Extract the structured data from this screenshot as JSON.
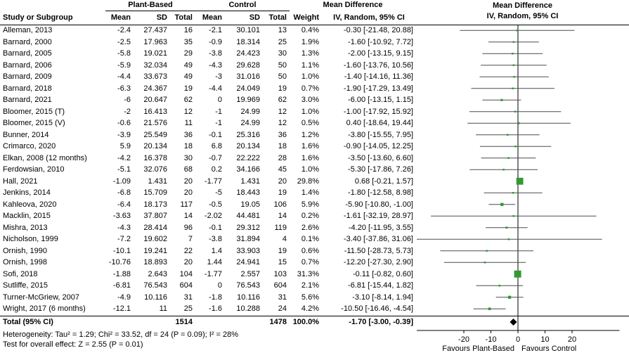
{
  "header": {
    "group1": "Plant-Based",
    "group2": "Control",
    "md_title": "Mean Difference",
    "col_study": "Study or Subgroup",
    "col_mean": "Mean",
    "col_sd": "SD",
    "col_total": "Total",
    "col_weight": "Weight",
    "col_ci": "IV, Random, 95% CI"
  },
  "footer": {
    "heterogeneity": "Heterogeneity: Tau² = 1.29; Chi² = 33.52, df = 24 (P = 0.09); I² = 28%",
    "overall_effect": "Test for overall effect: Z = 2.55 (P = 0.01)"
  },
  "colors": {
    "square": "#339933",
    "ci_line": "#4d4d4d",
    "diamond": "#000000",
    "axis": "#000000",
    "text": "#000000"
  },
  "chart_data": {
    "type": "forest",
    "title": "Mean Difference IV, Random, 95% CI",
    "effect_measure": "Mean Difference",
    "model": "IV, Random, 95% CI",
    "axis": {
      "ticks": [
        -20,
        -10,
        0,
        10,
        20
      ],
      "favours_left": "Favours Plant-Based",
      "favours_right": "Favours Control"
    },
    "studies": [
      {
        "study": "Alleman, 2013",
        "pb_mean": "-2.4",
        "pb_sd": "27.437",
        "pb_total": "16",
        "ctrl_mean": "-2.1",
        "ctrl_sd": "30.101",
        "ctrl_total": "13",
        "weight": "0.4%",
        "md": -0.3,
        "ci_low": -21.48,
        "ci_high": 20.88,
        "ci_text": "-0.30 [-21.48, 20.88]"
      },
      {
        "study": "Barnard, 2000",
        "pb_mean": "-2.5",
        "pb_sd": "17.963",
        "pb_total": "35",
        "ctrl_mean": "-0.9",
        "ctrl_sd": "18.314",
        "ctrl_total": "25",
        "weight": "1.9%",
        "md": -1.6,
        "ci_low": -10.92,
        "ci_high": 7.72,
        "ci_text": "-1.60 [-10.92, 7.72]"
      },
      {
        "study": "Barnard, 2005",
        "pb_mean": "-5.8",
        "pb_sd": "19.021",
        "pb_total": "29",
        "ctrl_mean": "-3.8",
        "ctrl_sd": "24.423",
        "ctrl_total": "30",
        "weight": "1.3%",
        "md": -2.0,
        "ci_low": -13.15,
        "ci_high": 9.15,
        "ci_text": "-2.00 [-13.15, 9.15]"
      },
      {
        "study": "Barnard, 2006",
        "pb_mean": "-5.9",
        "pb_sd": "32.034",
        "pb_total": "49",
        "ctrl_mean": "-4.3",
        "ctrl_sd": "29.628",
        "ctrl_total": "50",
        "weight": "1.1%",
        "md": -1.6,
        "ci_low": -13.76,
        "ci_high": 10.56,
        "ci_text": "-1.60 [-13.76, 10.56]"
      },
      {
        "study": "Barnard, 2009",
        "pb_mean": "-4.4",
        "pb_sd": "33.673",
        "pb_total": "49",
        "ctrl_mean": "-3",
        "ctrl_sd": "31.016",
        "ctrl_total": "50",
        "weight": "1.0%",
        "md": -1.4,
        "ci_low": -14.16,
        "ci_high": 11.36,
        "ci_text": "-1.40 [-14.16, 11.36]"
      },
      {
        "study": "Barnard, 2018",
        "pb_mean": "-6.3",
        "pb_sd": "24.367",
        "pb_total": "19",
        "ctrl_mean": "-4.4",
        "ctrl_sd": "24.049",
        "ctrl_total": "19",
        "weight": "0.7%",
        "md": -1.9,
        "ci_low": -17.29,
        "ci_high": 13.49,
        "ci_text": "-1.90 [-17.29, 13.49]"
      },
      {
        "study": "Barnard, 2021",
        "pb_mean": "-6",
        "pb_sd": "20.647",
        "pb_total": "62",
        "ctrl_mean": "0",
        "ctrl_sd": "19.969",
        "ctrl_total": "62",
        "weight": "3.0%",
        "md": -6.0,
        "ci_low": -13.15,
        "ci_high": 1.15,
        "ci_text": "-6.00 [-13.15, 1.15]"
      },
      {
        "study": "Bloomer, 2015 (T)",
        "pb_mean": "-2",
        "pb_sd": "16.413",
        "pb_total": "12",
        "ctrl_mean": "-1",
        "ctrl_sd": "24.99",
        "ctrl_total": "12",
        "weight": "1.0%",
        "md": -1.0,
        "ci_low": -17.92,
        "ci_high": 15.92,
        "ci_text": "-1.00 [-17.92, 15.92]"
      },
      {
        "study": "Bloomer, 2015 (V)",
        "pb_mean": "-0.6",
        "pb_sd": "21.576",
        "pb_total": "11",
        "ctrl_mean": "-1",
        "ctrl_sd": "24.99",
        "ctrl_total": "12",
        "weight": "0.5%",
        "md": 0.4,
        "ci_low": -18.64,
        "ci_high": 19.44,
        "ci_text": "0.40 [-18.64, 19.44]"
      },
      {
        "study": "Bunner, 2014",
        "pb_mean": "-3.9",
        "pb_sd": "25.549",
        "pb_total": "36",
        "ctrl_mean": "-0.1",
        "ctrl_sd": "25.316",
        "ctrl_total": "36",
        "weight": "1.2%",
        "md": -3.8,
        "ci_low": -15.55,
        "ci_high": 7.95,
        "ci_text": "-3.80 [-15.55, 7.95]"
      },
      {
        "study": "Crimarco, 2020",
        "pb_mean": "5.9",
        "pb_sd": "20.134",
        "pb_total": "18",
        "ctrl_mean": "6.8",
        "ctrl_sd": "20.134",
        "ctrl_total": "18",
        "weight": "1.6%",
        "md": -0.9,
        "ci_low": -14.05,
        "ci_high": 12.25,
        "ci_text": "-0.90 [-14.05, 12.25]"
      },
      {
        "study": "Elkan, 2008 (12 months)",
        "pb_mean": "-4.2",
        "pb_sd": "16.378",
        "pb_total": "30",
        "ctrl_mean": "-0.7",
        "ctrl_sd": "22.222",
        "ctrl_total": "28",
        "weight": "1.6%",
        "md": -3.5,
        "ci_low": -13.6,
        "ci_high": 6.6,
        "ci_text": "-3.50 [-13.60, 6.60]"
      },
      {
        "study": "Ferdowsian, 2010",
        "pb_mean": "-5.1",
        "pb_sd": "32.076",
        "pb_total": "68",
        "ctrl_mean": "0.2",
        "ctrl_sd": "34.166",
        "ctrl_total": "45",
        "weight": "1.0%",
        "md": -5.3,
        "ci_low": -17.86,
        "ci_high": 7.26,
        "ci_text": "-5.30 [-17.86, 7.26]"
      },
      {
        "study": "Hall, 2021",
        "pb_mean": "-1.09",
        "pb_sd": "1.431",
        "pb_total": "20",
        "ctrl_mean": "-1.77",
        "ctrl_sd": "1.431",
        "ctrl_total": "20",
        "weight": "29.8%",
        "md": 0.68,
        "ci_low": -0.21,
        "ci_high": 1.57,
        "ci_text": "0.68 [-0.21, 1.57]"
      },
      {
        "study": "Jenkins, 2014",
        "pb_mean": "-6.8",
        "pb_sd": "15.709",
        "pb_total": "20",
        "ctrl_mean": "-5",
        "ctrl_sd": "18.443",
        "ctrl_total": "19",
        "weight": "1.4%",
        "md": -1.8,
        "ci_low": -12.58,
        "ci_high": 8.98,
        "ci_text": "-1.80 [-12.58, 8.98]"
      },
      {
        "study": "Kahleova, 2020",
        "pb_mean": "-6.4",
        "pb_sd": "18.173",
        "pb_total": "117",
        "ctrl_mean": "-0.5",
        "ctrl_sd": "19.05",
        "ctrl_total": "106",
        "weight": "5.9%",
        "md": -5.9,
        "ci_low": -10.8,
        "ci_high": -1.0,
        "ci_text": "-5.90 [-10.80, -1.00]"
      },
      {
        "study": "Macklin, 2015",
        "pb_mean": "-3.63",
        "pb_sd": "37.807",
        "pb_total": "14",
        "ctrl_mean": "-2.02",
        "ctrl_sd": "44.481",
        "ctrl_total": "14",
        "weight": "0.2%",
        "md": -1.61,
        "ci_low": -32.19,
        "ci_high": 28.97,
        "ci_text": "-1.61 [-32.19, 28.97]"
      },
      {
        "study": "Mishra, 2013",
        "pb_mean": "-4.3",
        "pb_sd": "28.414",
        "pb_total": "96",
        "ctrl_mean": "-0.1",
        "ctrl_sd": "29.312",
        "ctrl_total": "119",
        "weight": "2.6%",
        "md": -4.2,
        "ci_low": -11.95,
        "ci_high": 3.55,
        "ci_text": "-4.20 [-11.95, 3.55]"
      },
      {
        "study": "Nicholson, 1999",
        "pb_mean": "-7.2",
        "pb_sd": "19.602",
        "pb_total": "7",
        "ctrl_mean": "-3.8",
        "ctrl_sd": "31.894",
        "ctrl_total": "4",
        "weight": "0.1%",
        "md": -3.4,
        "ci_low": -37.86,
        "ci_high": 31.06,
        "ci_text": "-3.40 [-37.86, 31.06]"
      },
      {
        "study": "Ornish, 1990",
        "pb_mean": "-10.1",
        "pb_sd": "19.241",
        "pb_total": "22",
        "ctrl_mean": "1.4",
        "ctrl_sd": "33.903",
        "ctrl_total": "19",
        "weight": "0.6%",
        "md": -11.5,
        "ci_low": -28.73,
        "ci_high": 5.73,
        "ci_text": "-11.50 [-28.73, 5.73]"
      },
      {
        "study": "Ornish, 1998",
        "pb_mean": "-10.76",
        "pb_sd": "18.893",
        "pb_total": "20",
        "ctrl_mean": "1.44",
        "ctrl_sd": "24.941",
        "ctrl_total": "15",
        "weight": "0.7%",
        "md": -12.2,
        "ci_low": -27.3,
        "ci_high": 2.9,
        "ci_text": "-12.20 [-27.30, 2.90]"
      },
      {
        "study": "Sofi, 2018",
        "pb_mean": "-1.88",
        "pb_sd": "2.643",
        "pb_total": "104",
        "ctrl_mean": "-1.77",
        "ctrl_sd": "2.557",
        "ctrl_total": "103",
        "weight": "31.3%",
        "md": -0.11,
        "ci_low": -0.82,
        "ci_high": 0.6,
        "ci_text": "-0.11 [-0.82, 0.60]"
      },
      {
        "study": "Sutliffe, 2015",
        "pb_mean": "-6.81",
        "pb_sd": "76.543",
        "pb_total": "604",
        "ctrl_mean": "0",
        "ctrl_sd": "76.543",
        "ctrl_total": "604",
        "weight": "2.1%",
        "md": -6.81,
        "ci_low": -15.44,
        "ci_high": 1.82,
        "ci_text": "-6.81 [-15.44, 1.82]"
      },
      {
        "study": "Turner-McGriew, 2007",
        "pb_mean": "-4.9",
        "pb_sd": "10.116",
        "pb_total": "31",
        "ctrl_mean": "-1.8",
        "ctrl_sd": "10.116",
        "ctrl_total": "31",
        "weight": "5.6%",
        "md": -3.1,
        "ci_low": -8.14,
        "ci_high": 1.94,
        "ci_text": "-3.10 [-8.14, 1.94]"
      },
      {
        "study": "Wright, 2017 (6 months)",
        "pb_mean": "-12.1",
        "pb_sd": "11",
        "pb_total": "25",
        "ctrl_mean": "-1.6",
        "ctrl_sd": "10.288",
        "ctrl_total": "24",
        "weight": "4.2%",
        "md": -10.5,
        "ci_low": -16.46,
        "ci_high": -4.54,
        "ci_text": "-10.50 [-16.46, -4.54]"
      }
    ],
    "overall": {
      "label": "Total (95% CI)",
      "pb_total": "1514",
      "ctrl_total": "1478",
      "weight": "100.0%",
      "md": -1.7,
      "ci_low": -3.0,
      "ci_high": -0.39,
      "ci_text": "-1.70 [-3.00, -0.39]"
    }
  }
}
